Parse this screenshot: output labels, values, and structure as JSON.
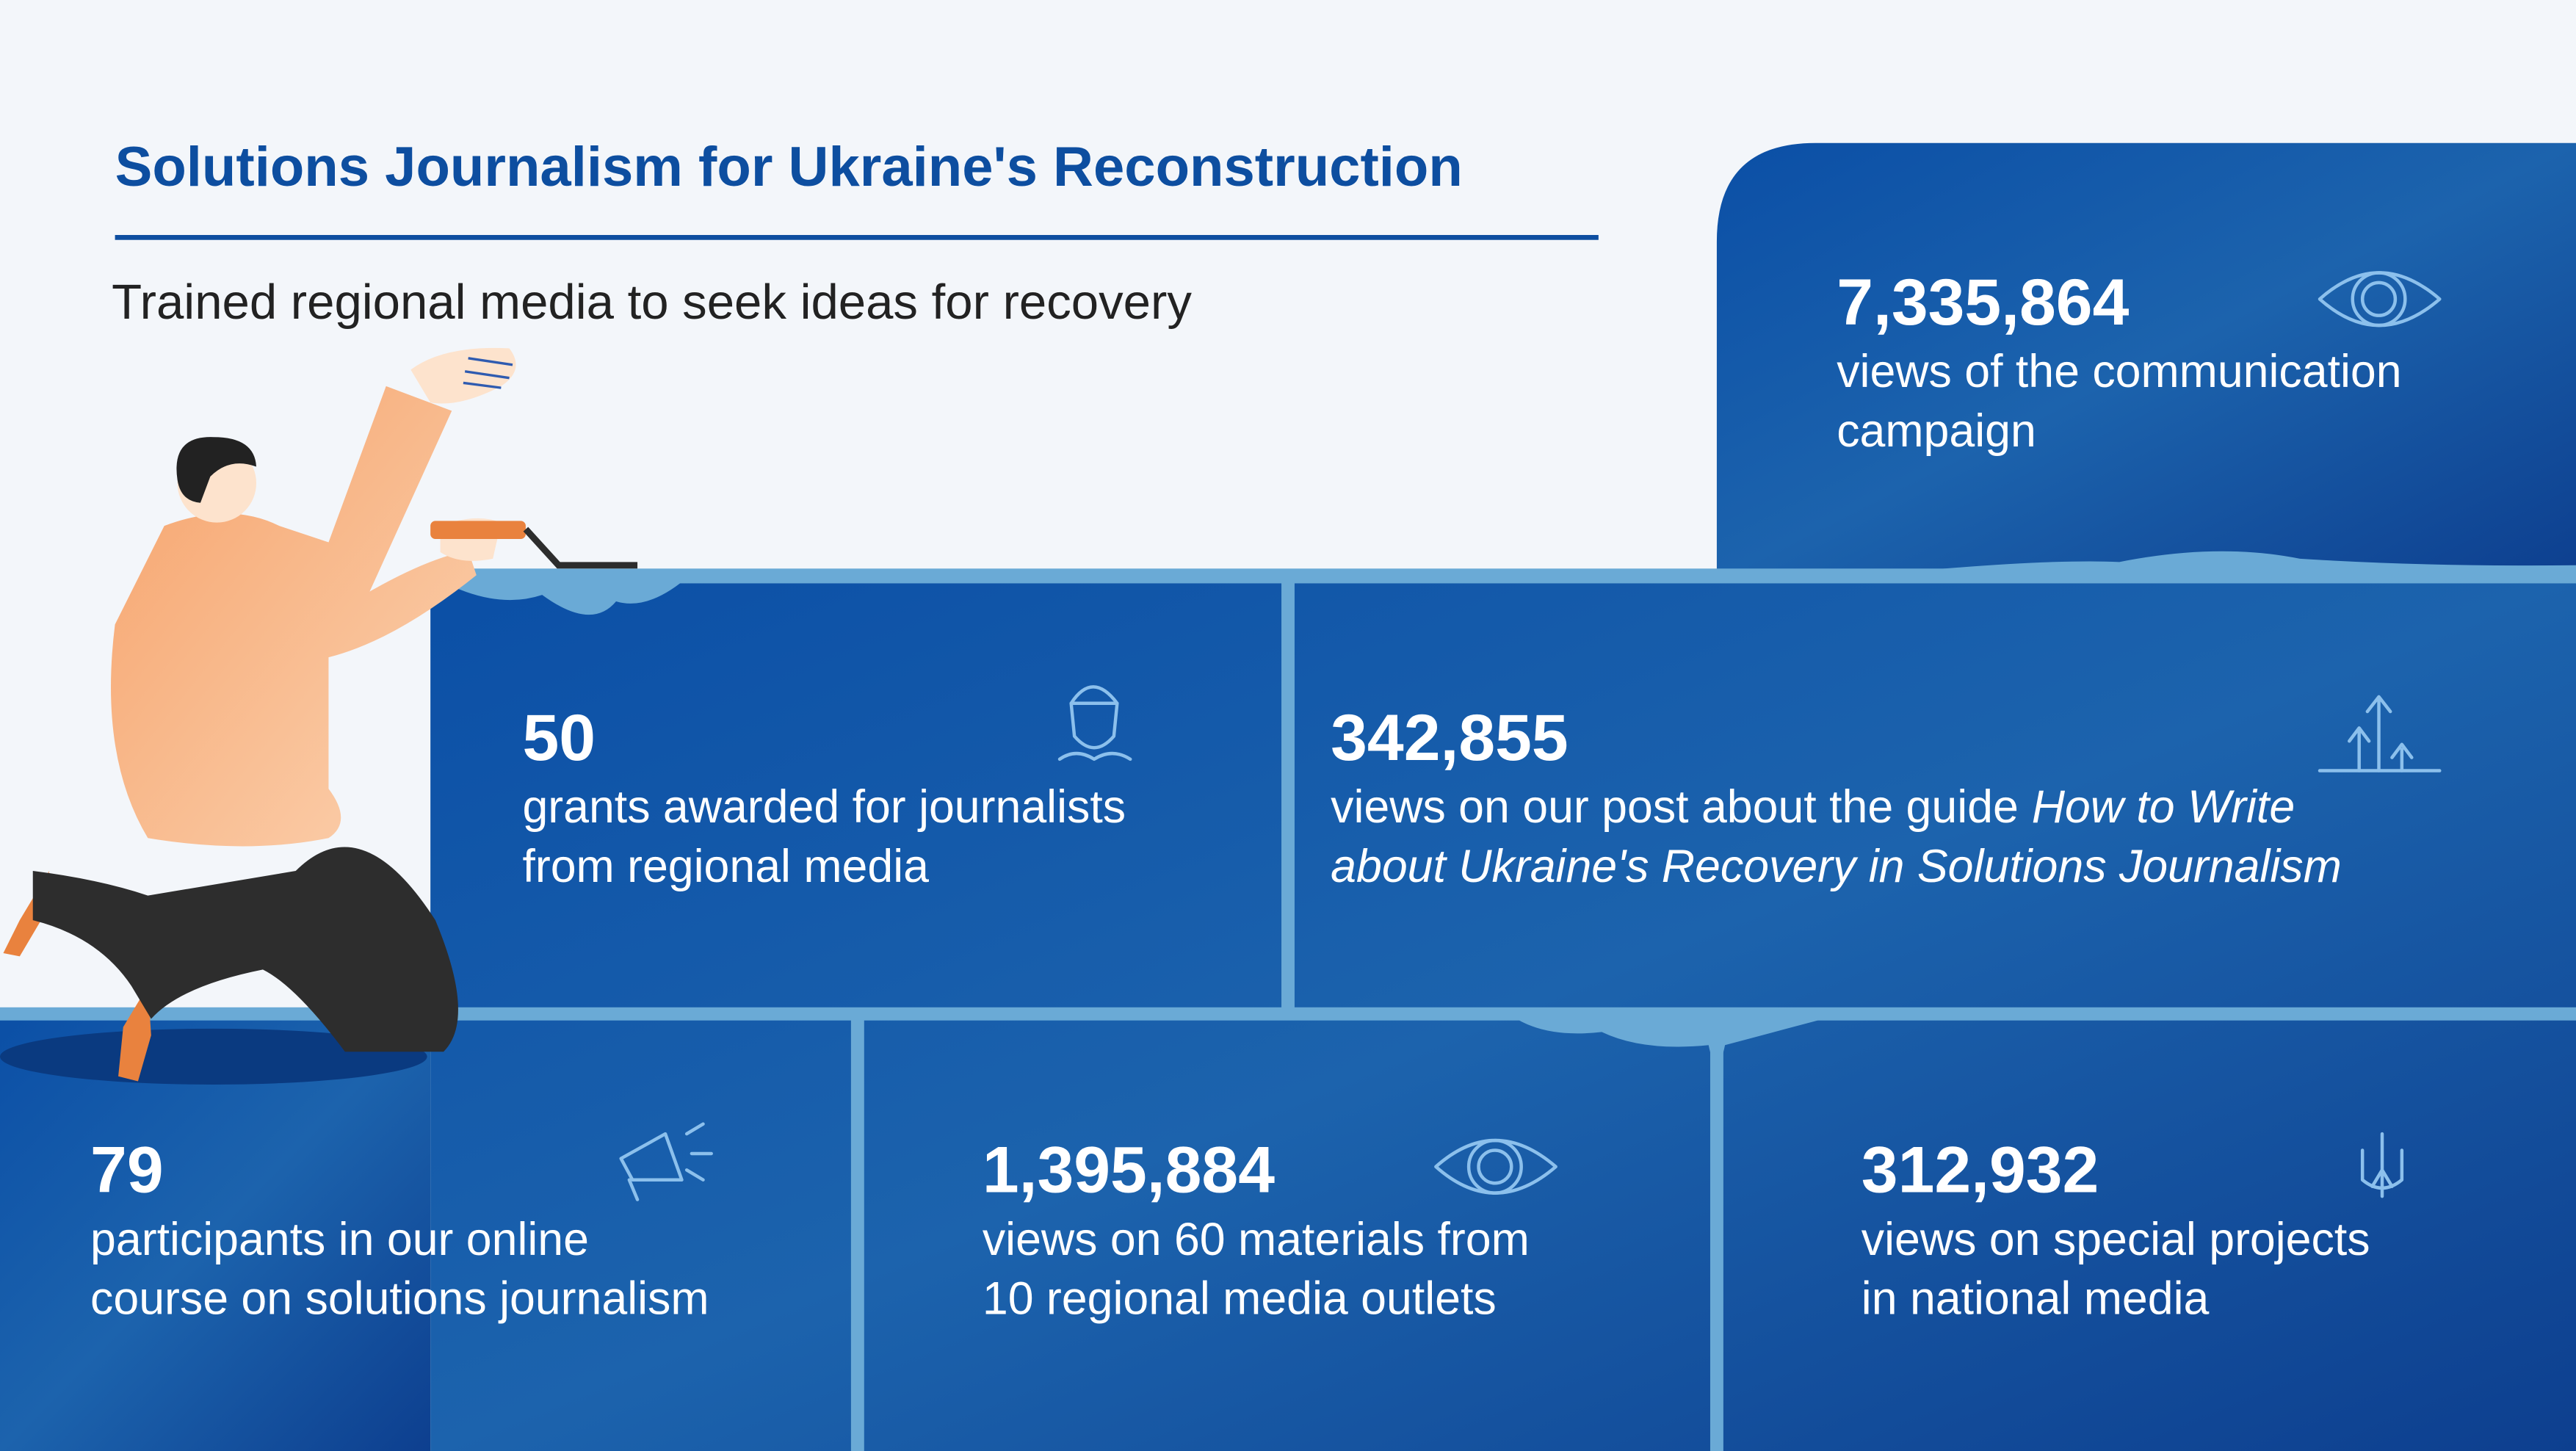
{
  "header": {
    "title": "Solutions Journalism for Ukraine's Reconstruction",
    "subtitle": "Trained regional media to seek ideas for recovery"
  },
  "stats": [
    {
      "value": "7,335,864",
      "lines": [
        [
          {
            "text": "views of the communication"
          }
        ],
        [
          {
            "text": "campaign"
          }
        ]
      ]
    },
    {
      "value": "50",
      "lines": [
        [
          {
            "text": "grants awarded for journalists"
          }
        ],
        [
          {
            "text": "from regional media"
          }
        ]
      ]
    },
    {
      "value": "342,855",
      "lines": [
        [
          {
            "text": "views on our post about the guide"
          },
          {
            "text": "How to Write",
            "italic": true
          }
        ],
        [
          {
            "text": "about Ukraine's Recovery in Solutions Journalism",
            "italic": true
          }
        ]
      ]
    },
    {
      "value": "79",
      "lines": [
        [
          {
            "text": "participants in our online"
          }
        ],
        [
          {
            "text": "course on solutions journalism"
          }
        ]
      ]
    },
    {
      "value": "1,395,884",
      "lines": [
        [
          {
            "text": "views on 60 materials from"
          }
        ],
        [
          {
            "text": "10 regional media outlets"
          }
        ]
      ]
    },
    {
      "value": "312,932",
      "lines": [
        [
          {
            "text": "views on special projects"
          }
        ],
        [
          {
            "text": "in national media"
          }
        ]
      ]
    }
  ]
}
